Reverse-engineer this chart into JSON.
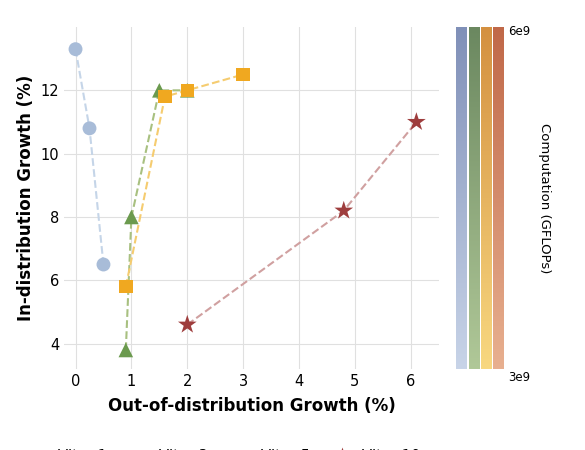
{
  "series": {
    "VIter 1": {
      "x": [
        0.0,
        0.25,
        0.5
      ],
      "y": [
        13.3,
        10.8,
        6.5
      ],
      "marker": "o",
      "color": "#a8bcd8",
      "line_color": "#c5d5e8",
      "zorder": 3
    },
    "VIter 3": {
      "x": [
        0.9,
        1.0,
        1.5,
        2.0
      ],
      "y": [
        3.8,
        8.0,
        12.0,
        12.0
      ],
      "marker": "^",
      "color": "#6b9a4e",
      "line_color": "#a8c080",
      "zorder": 3
    },
    "VIter 5": {
      "x": [
        0.9,
        1.6,
        2.0,
        3.0
      ],
      "y": [
        5.8,
        11.8,
        12.0,
        12.5
      ],
      "marker": "s",
      "color": "#f0a820",
      "line_color": "#f5cc70",
      "zorder": 3
    },
    "VIter 10": {
      "x": [
        2.0,
        4.8,
        6.1
      ],
      "y": [
        4.6,
        8.2,
        11.0
      ],
      "marker": "*",
      "color": "#9e3d3d",
      "line_color": "#d0a0a0",
      "zorder": 3
    }
  },
  "xlabel": "Out-of-distribution Growth (%)",
  "ylabel": "In-distribution Growth (%)",
  "xlim": [
    -0.2,
    6.5
  ],
  "ylim": [
    3.2,
    14.0
  ],
  "xticks": [
    0,
    1,
    2,
    3,
    4,
    5,
    6
  ],
  "yticks": [
    4,
    6,
    8,
    10,
    12
  ],
  "colorbar_label": "Computation (GFLOPs)",
  "colorbar_min": "3e9",
  "colorbar_max": "6e9",
  "colorbar_strips": [
    {
      "top": "#8090b8",
      "bottom": "#c8d4e8"
    },
    {
      "top": "#6b8860",
      "bottom": "#b0c898"
    },
    {
      "top": "#d49040",
      "bottom": "#f8d880"
    },
    {
      "top": "#c06848",
      "bottom": "#e8b090"
    }
  ],
  "background_color": "#ffffff",
  "grid_color": "#e0e0e0"
}
